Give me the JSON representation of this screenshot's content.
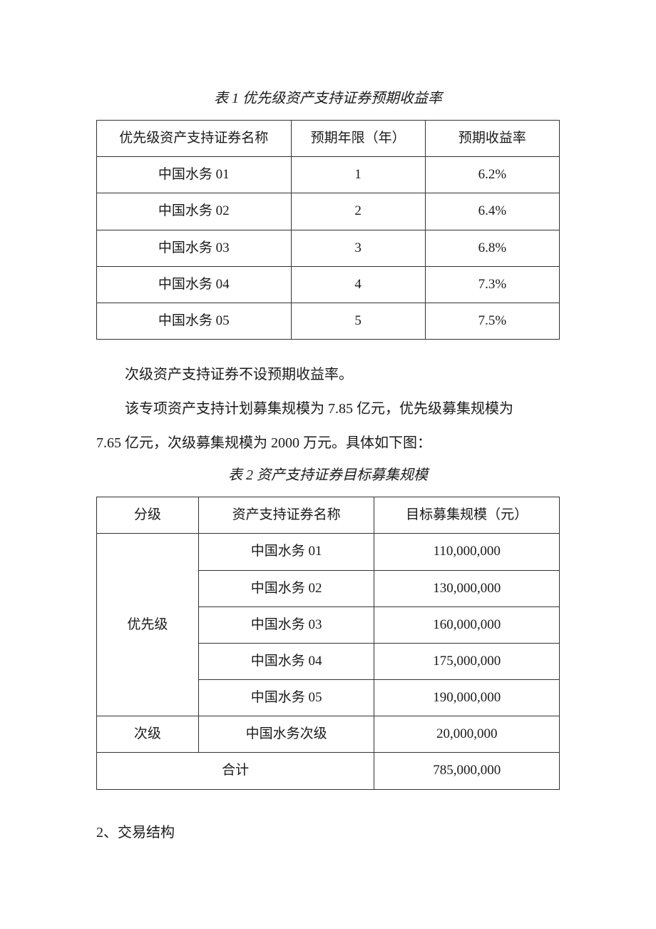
{
  "table1": {
    "caption": "表 1 优先级资产支持证券预期收益率",
    "headers": [
      "优先级资产支持证券名称",
      "预期年限（年）",
      "预期收益率"
    ],
    "rows": [
      [
        "中国水务 01",
        "1",
        "6.2%"
      ],
      [
        "中国水务 02",
        "2",
        "6.4%"
      ],
      [
        "中国水务 03",
        "3",
        "6.8%"
      ],
      [
        "中国水务 04",
        "4",
        "7.3%"
      ],
      [
        "中国水务 05",
        "5",
        "7.5%"
      ]
    ]
  },
  "para1": "次级资产支持证券不设预期收益率。",
  "para2a": "该专项资产支持计划募集规模为 7.85 亿元，优先级募集规模为",
  "para2b": "7.65 亿元，次级募集规模为 2000 万元。具体如下图：",
  "table2": {
    "caption": "表 2 资产支持证券目标募集规模",
    "headers": [
      "分级",
      "资产支持证券名称",
      "目标募集规模（元）"
    ],
    "priorityLabel": "优先级",
    "priorityRows": [
      [
        "中国水务 01",
        "110,000,000"
      ],
      [
        "中国水务 02",
        "130,000,000"
      ],
      [
        "中国水务 03",
        "160,000,000"
      ],
      [
        "中国水务 04",
        "175,000,000"
      ],
      [
        "中国水务 05",
        "190,000,000"
      ]
    ],
    "subLabel": "次级",
    "subRow": [
      "中国水务次级",
      "20,000,000"
    ],
    "totalLabel": "合计",
    "totalValue": "785,000,000"
  },
  "section2": "2、交易结构"
}
